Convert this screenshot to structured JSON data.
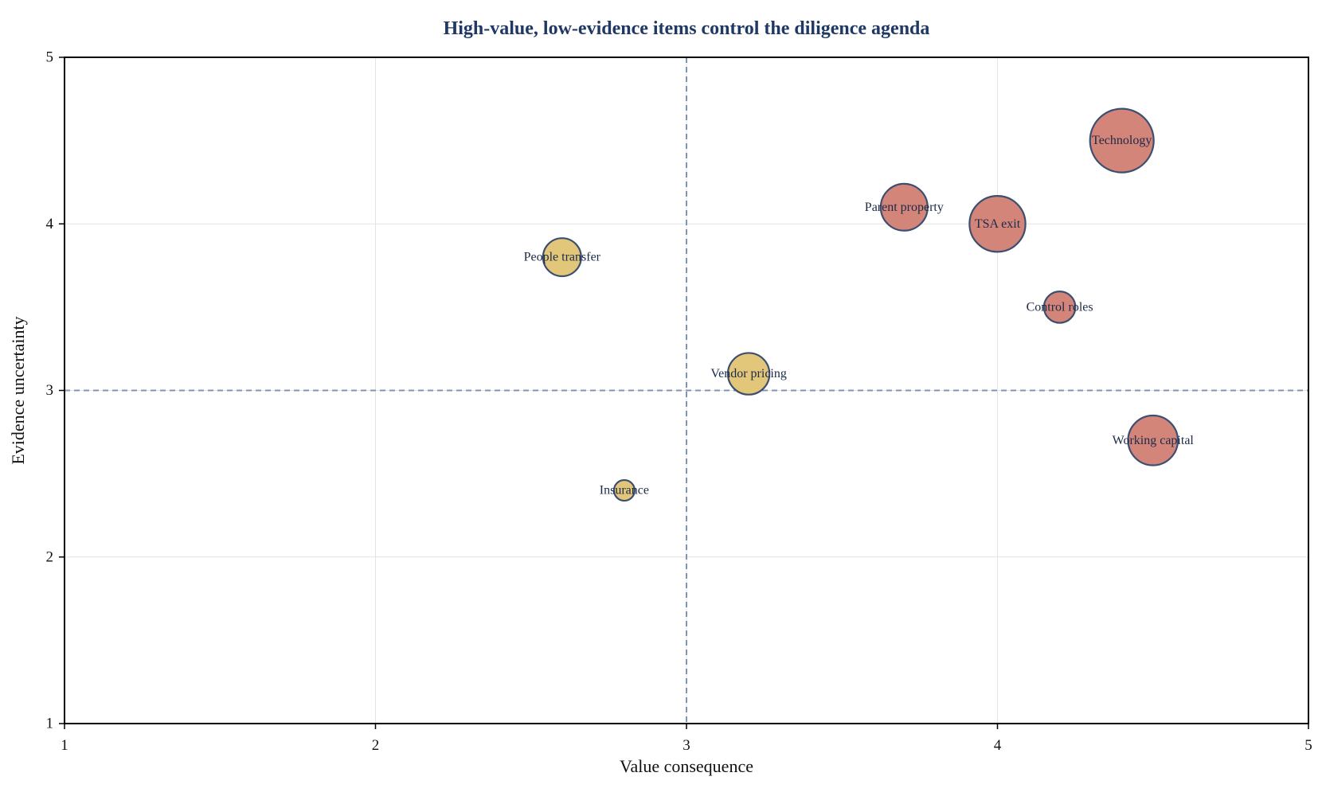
{
  "chart_data": {
    "type": "scatter",
    "title": "High-value, low-evidence items control the diligence agenda",
    "xlabel": "Value consequence",
    "ylabel": "Evidence uncertainty",
    "xlim": [
      1,
      5
    ],
    "ylim": [
      1,
      5
    ],
    "xticks": [
      "1",
      "2",
      "3",
      "4",
      "5"
    ],
    "yticks": [
      "1",
      "2",
      "3",
      "4",
      "5"
    ],
    "grid": true,
    "reference_lines": {
      "x": 3,
      "y": 3
    },
    "points": [
      {
        "label": "Technology",
        "x": 4.4,
        "y": 4.5,
        "size": 5,
        "group": "high"
      },
      {
        "label": "Parent property",
        "x": 3.7,
        "y": 4.1,
        "size": 3,
        "group": "high"
      },
      {
        "label": "TSA exit",
        "x": 4.0,
        "y": 4.0,
        "size": 4,
        "group": "high"
      },
      {
        "label": "Control roles",
        "x": 4.2,
        "y": 3.5,
        "size": 1.7,
        "group": "high"
      },
      {
        "label": "Working capital",
        "x": 4.5,
        "y": 2.7,
        "size": 3.3,
        "group": "high"
      },
      {
        "label": "People transfer",
        "x": 2.6,
        "y": 3.8,
        "size": 2.2,
        "group": "low"
      },
      {
        "label": "Vendor pricing",
        "x": 3.2,
        "y": 3.1,
        "size": 2.5,
        "group": "low"
      },
      {
        "label": "Insurance",
        "x": 2.8,
        "y": 2.4,
        "size": 1.1,
        "group": "low"
      }
    ]
  },
  "colors": {
    "title": "#1f3864",
    "high": "#d4857a",
    "low": "#e2c67a",
    "bubble_edge": "#3d4f70",
    "reference_line": "#8096b0",
    "grid": "#e4e4e4",
    "axis": "#000000",
    "bubble_label": "#1b2a47"
  }
}
